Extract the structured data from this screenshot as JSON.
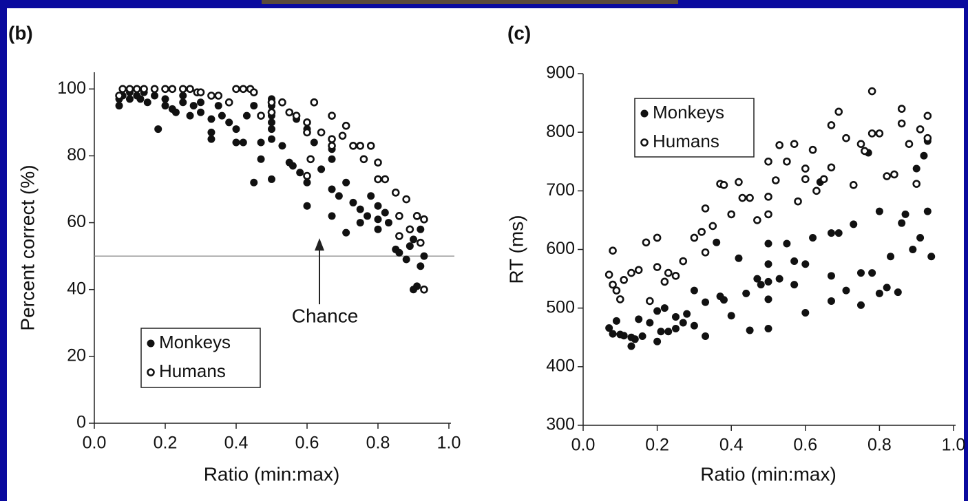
{
  "chart_data": [
    {
      "type": "scatter",
      "panel_label": "(b)",
      "xlabel": "Ratio (min:max)",
      "ylabel": "Percent correct (%)",
      "xlim": [
        0,
        1
      ],
      "ylim": [
        0,
        105
      ],
      "xticks": [
        {
          "value": 0,
          "label": "0.0"
        },
        {
          "value": 0.2,
          "label": "0.2"
        },
        {
          "value": 0.4,
          "label": "0.4"
        },
        {
          "value": 0.6,
          "label": "0.6"
        },
        {
          "value": 0.8,
          "label": "0.8"
        },
        {
          "value": 1,
          "label": "1.0"
        }
      ],
      "yticks": [
        0,
        20,
        40,
        60,
        80,
        100
      ],
      "reference_line": {
        "value": 50,
        "label": "Chance"
      },
      "legend": "lower left",
      "series": [
        {
          "name": "Monkeys",
          "color": "#111111",
          "marker": "filled",
          "x": [
            0.07,
            0.07,
            0.08,
            0.1,
            0.1,
            0.12,
            0.13,
            0.14,
            0.15,
            0.17,
            0.18,
            0.2,
            0.2,
            0.22,
            0.23,
            0.25,
            0.25,
            0.27,
            0.28,
            0.3,
            0.3,
            0.33,
            0.33,
            0.33,
            0.35,
            0.36,
            0.38,
            0.4,
            0.4,
            0.42,
            0.43,
            0.45,
            0.45,
            0.47,
            0.47,
            0.5,
            0.5,
            0.5,
            0.5,
            0.5,
            0.5,
            0.5,
            0.53,
            0.55,
            0.56,
            0.57,
            0.58,
            0.6,
            0.6,
            0.6,
            0.62,
            0.64,
            0.67,
            0.67,
            0.67,
            0.67,
            0.69,
            0.71,
            0.71,
            0.73,
            0.75,
            0.75,
            0.77,
            0.78,
            0.8,
            0.8,
            0.8,
            0.82,
            0.83,
            0.85,
            0.86,
            0.88,
            0.89,
            0.9,
            0.9,
            0.91,
            0.92,
            0.93,
            0.92
          ],
          "values": [
            95,
            97,
            98,
            97,
            99,
            98,
            97,
            99,
            96,
            98,
            88,
            95,
            97,
            94,
            93,
            96,
            98,
            92,
            95,
            93,
            96,
            85,
            87,
            91,
            95,
            92,
            90,
            84,
            88,
            84,
            92,
            72,
            95,
            79,
            84,
            73,
            85,
            88,
            90,
            92,
            95,
            97,
            83,
            78,
            77,
            91,
            75,
            65,
            72,
            88,
            84,
            76,
            62,
            70,
            79,
            82,
            68,
            57,
            72,
            66,
            60,
            64,
            62,
            68,
            58,
            61,
            65,
            63,
            60,
            52,
            51,
            49,
            53,
            40,
            55,
            41,
            47,
            50,
            58
          ]
        },
        {
          "name": "Humans",
          "color": "#111111",
          "marker": "open",
          "x": [
            0.07,
            0.08,
            0.1,
            0.12,
            0.14,
            0.17,
            0.2,
            0.22,
            0.25,
            0.27,
            0.29,
            0.3,
            0.33,
            0.35,
            0.38,
            0.4,
            0.42,
            0.44,
            0.45,
            0.47,
            0.5,
            0.5,
            0.53,
            0.55,
            0.57,
            0.6,
            0.6,
            0.61,
            0.62,
            0.64,
            0.6,
            0.67,
            0.67,
            0.67,
            0.7,
            0.71,
            0.73,
            0.75,
            0.76,
            0.78,
            0.8,
            0.8,
            0.82,
            0.85,
            0.86,
            0.86,
            0.88,
            0.89,
            0.91,
            0.93,
            0.93,
            0.92
          ],
          "values": [
            98,
            100,
            100,
            100,
            100,
            100,
            100,
            100,
            100,
            100,
            99,
            99,
            98,
            98,
            96,
            100,
            100,
            100,
            99,
            92,
            96,
            93,
            96,
            93,
            92,
            90,
            87,
            79,
            96,
            87,
            74,
            92,
            85,
            83,
            86,
            89,
            83,
            83,
            79,
            83,
            73,
            78,
            73,
            69,
            62,
            56,
            67,
            58,
            62,
            61,
            40,
            54
          ]
        }
      ]
    },
    {
      "type": "scatter",
      "panel_label": "(c)",
      "xlabel": "Ratio (min:max)",
      "ylabel": "RT (ms)",
      "xlim": [
        0,
        1
      ],
      "ylim": [
        300,
        900
      ],
      "xticks": [
        {
          "value": 0,
          "label": "0.0"
        },
        {
          "value": 0.2,
          "label": "0.2"
        },
        {
          "value": 0.4,
          "label": "0.4"
        },
        {
          "value": 0.6,
          "label": "0.6"
        },
        {
          "value": 0.8,
          "label": "0.8"
        },
        {
          "value": 1,
          "label": "1.0"
        }
      ],
      "yticks": [
        300,
        400,
        500,
        600,
        700,
        800,
        900
      ],
      "legend": "upper left",
      "series": [
        {
          "name": "Monkeys",
          "color": "#111111",
          "marker": "filled",
          "x": [
            0.07,
            0.08,
            0.09,
            0.1,
            0.11,
            0.13,
            0.13,
            0.14,
            0.15,
            0.16,
            0.18,
            0.2,
            0.2,
            0.21,
            0.22,
            0.23,
            0.25,
            0.25,
            0.27,
            0.28,
            0.3,
            0.3,
            0.33,
            0.33,
            0.36,
            0.37,
            0.38,
            0.4,
            0.42,
            0.44,
            0.45,
            0.47,
            0.48,
            0.5,
            0.5,
            0.5,
            0.5,
            0.5,
            0.53,
            0.55,
            0.57,
            0.57,
            0.6,
            0.6,
            0.62,
            0.64,
            0.67,
            0.67,
            0.67,
            0.69,
            0.71,
            0.73,
            0.75,
            0.75,
            0.77,
            0.78,
            0.8,
            0.8,
            0.82,
            0.83,
            0.85,
            0.86,
            0.87,
            0.89,
            0.9,
            0.91,
            0.92,
            0.93,
            0.93,
            0.94
          ],
          "values": [
            466,
            456,
            478,
            455,
            453,
            450,
            435,
            447,
            481,
            452,
            475,
            443,
            495,
            460,
            500,
            460,
            465,
            485,
            475,
            490,
            530,
            470,
            452,
            510,
            612,
            520,
            514,
            487,
            585,
            525,
            462,
            550,
            540,
            465,
            515,
            545,
            575,
            610,
            550,
            610,
            540,
            580,
            492,
            575,
            620,
            715,
            512,
            555,
            628,
            628,
            530,
            643,
            505,
            560,
            765,
            560,
            525,
            665,
            535,
            588,
            527,
            645,
            660,
            600,
            738,
            620,
            760,
            785,
            665,
            588
          ]
        },
        {
          "name": "Humans",
          "color": "#111111",
          "marker": "open",
          "x": [
            0.07,
            0.08,
            0.08,
            0.09,
            0.1,
            0.11,
            0.13,
            0.15,
            0.17,
            0.18,
            0.2,
            0.2,
            0.22,
            0.23,
            0.25,
            0.27,
            0.3,
            0.32,
            0.33,
            0.33,
            0.35,
            0.37,
            0.38,
            0.4,
            0.42,
            0.43,
            0.45,
            0.47,
            0.5,
            0.5,
            0.5,
            0.52,
            0.53,
            0.55,
            0.57,
            0.58,
            0.6,
            0.6,
            0.62,
            0.63,
            0.65,
            0.67,
            0.67,
            0.69,
            0.71,
            0.73,
            0.75,
            0.76,
            0.78,
            0.78,
            0.8,
            0.82,
            0.84,
            0.86,
            0.86,
            0.88,
            0.9,
            0.91,
            0.93,
            0.93
          ],
          "values": [
            557,
            598,
            540,
            530,
            515,
            548,
            560,
            565,
            612,
            512,
            620,
            570,
            545,
            560,
            555,
            580,
            620,
            630,
            670,
            595,
            640,
            712,
            710,
            660,
            715,
            688,
            688,
            650,
            750,
            690,
            660,
            718,
            778,
            750,
            780,
            682,
            738,
            720,
            770,
            700,
            720,
            812,
            740,
            835,
            790,
            710,
            780,
            768,
            870,
            798,
            798,
            725,
            728,
            815,
            840,
            780,
            712,
            805,
            828,
            790
          ]
        }
      ]
    }
  ]
}
